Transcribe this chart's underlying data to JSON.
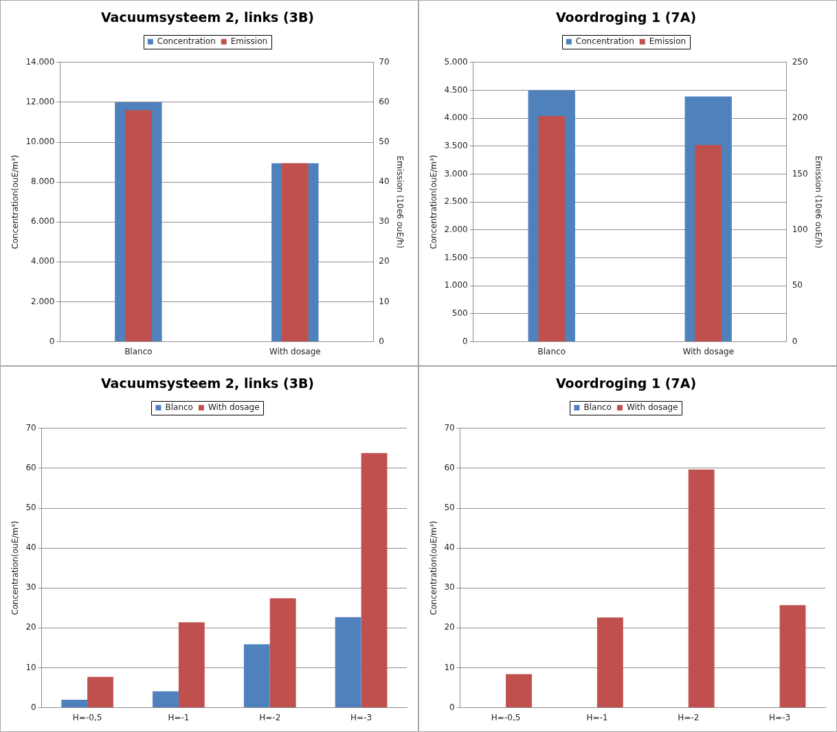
{
  "chart_data": [
    {
      "type": "bar",
      "title": "Vacuumsysteem 2, links (3B)",
      "categories": [
        "Blanco",
        "With dosage"
      ],
      "ylabel": "Concentration(ouE/m³)",
      "y2label": "Emission (10e6 ouE/h)",
      "series": [
        {
          "name": "Concentration",
          "color": "#4f81bd",
          "values": [
            12000,
            8940
          ]
        },
        {
          "name": "Emission",
          "color": "#c0504d",
          "values": [
            58,
            44.7
          ],
          "axis": "y2"
        }
      ],
      "ylim": [
        0,
        14000
      ],
      "yticks": [
        0,
        {
          "value": 2000,
          "label": "2.000"
        },
        {
          "value": 4000,
          "label": "4.000"
        },
        {
          "value": 6000,
          "label": "6.000"
        },
        {
          "value": 8000,
          "label": "8.000"
        },
        {
          "value": 10000,
          "label": "10.000"
        },
        {
          "value": 12000,
          "label": "12.000"
        },
        {
          "value": 14000,
          "label": "14.000"
        }
      ],
      "y2lim": [
        0,
        70
      ],
      "y2ticks": [
        0,
        10,
        20,
        30,
        40,
        50,
        60,
        70
      ],
      "grid": "y",
      "legend": "top"
    },
    {
      "type": "bar",
      "title": "Voordroging 1 (7A)",
      "categories": [
        "Blanco",
        "With dosage"
      ],
      "ylabel": "Concentration(ouE/m³)",
      "y2label": "Emission (10e6 ouE/h)",
      "series": [
        {
          "name": "Concentration",
          "color": "#4f81bd",
          "values": [
            4500,
            4390
          ]
        },
        {
          "name": "Emission",
          "color": "#c0504d",
          "values": [
            202,
            176
          ],
          "axis": "y2"
        }
      ],
      "ylim": [
        0,
        5000
      ],
      "yticks": [
        0,
        500,
        {
          "value": 1000,
          "label": "1.000"
        },
        {
          "value": 1500,
          "label": "1.500"
        },
        {
          "value": 2000,
          "label": "2.000"
        },
        {
          "value": 2500,
          "label": "2.500"
        },
        {
          "value": 3000,
          "label": "3.000"
        },
        {
          "value": 3500,
          "label": "3.500"
        },
        {
          "value": 4000,
          "label": "4.000"
        },
        {
          "value": 4500,
          "label": "4.500"
        },
        {
          "value": 5000,
          "label": "5.000"
        }
      ],
      "y2lim": [
        0,
        250
      ],
      "y2ticks": [
        0,
        50,
        100,
        150,
        200,
        250
      ],
      "grid": "y",
      "legend": "top"
    },
    {
      "type": "bar",
      "title": "Vacuumsysteem 2, links (3B)",
      "categories": [
        "H=-0,5",
        "H=-1",
        "H=-2",
        "H=-3"
      ],
      "ylabel": "Concentration(ouE/m³)",
      "series": [
        {
          "name": "Blanco",
          "color": "#4f81bd",
          "values": [
            2,
            4.1,
            15.9,
            22.7
          ]
        },
        {
          "name": "With dosage",
          "color": "#c0504d",
          "values": [
            7.7,
            21.4,
            27.4,
            63.8
          ]
        }
      ],
      "ylim": [
        0,
        70
      ],
      "yticks": [
        0,
        10,
        20,
        30,
        40,
        50,
        60,
        70
      ],
      "grid": "y",
      "legend": "top"
    },
    {
      "type": "bar",
      "title": "Voordroging 1 (7A)",
      "categories": [
        "H=-0,5",
        "H=-1",
        "H=-2",
        "H=-3"
      ],
      "ylabel": "Concentration(ouE/m³)",
      "series": [
        {
          "name": "Blanco",
          "color": "#4f81bd",
          "values": [
            null,
            null,
            null,
            null
          ]
        },
        {
          "name": "With dosage",
          "color": "#c0504d",
          "values": [
            8.4,
            22.6,
            59.7,
            25.7
          ]
        }
      ],
      "ylim": [
        0,
        70
      ],
      "yticks": [
        0,
        10,
        20,
        30,
        40,
        50,
        60,
        70
      ],
      "grid": "y",
      "legend": "top"
    }
  ]
}
